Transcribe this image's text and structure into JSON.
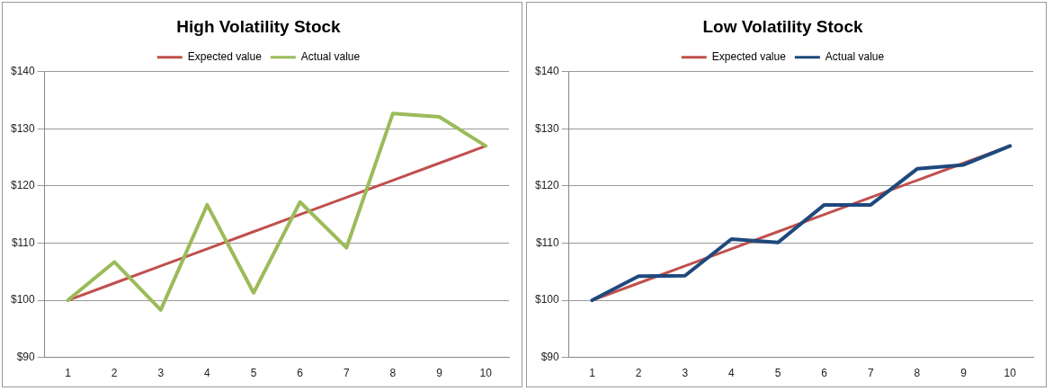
{
  "chart_data": [
    {
      "type": "line",
      "title": "High Volatility Stock",
      "categories": [
        "1",
        "2",
        "3",
        "4",
        "5",
        "6",
        "7",
        "8",
        "9",
        "10"
      ],
      "series": [
        {
          "name": "Expected value",
          "color": "#c0504d",
          "values": [
            100,
            103,
            106,
            109,
            112,
            115,
            118,
            121,
            124,
            127
          ]
        },
        {
          "name": "Actual value",
          "color": "#9bbb59",
          "values": [
            100,
            106.7,
            98.3,
            116.7,
            101.3,
            117.2,
            109.2,
            132.7,
            132.1,
            127
          ]
        }
      ],
      "ylim": [
        90,
        140
      ],
      "yticks": [
        {
          "value": 90,
          "label": "$90"
        },
        {
          "value": 100,
          "label": "$100"
        },
        {
          "value": 110,
          "label": "$110"
        },
        {
          "value": 120,
          "label": "$120"
        },
        {
          "value": 130,
          "label": "$130"
        },
        {
          "value": 140,
          "label": "$140"
        }
      ],
      "grid": "y",
      "legend": "top",
      "marker": "none",
      "line_style": "solid"
    },
    {
      "type": "line",
      "title": "Low Volatility Stock",
      "categories": [
        "1",
        "2",
        "3",
        "4",
        "5",
        "6",
        "7",
        "8",
        "9",
        "10"
      ],
      "series": [
        {
          "name": "Expected value",
          "color": "#c0504d",
          "values": [
            100,
            103,
            106,
            109,
            112,
            115,
            118,
            121,
            124,
            127
          ]
        },
        {
          "name": "Actual value",
          "color": "#1f497d",
          "values": [
            100,
            104.2,
            104.3,
            110.7,
            110.1,
            116.7,
            116.7,
            123,
            123.7,
            127
          ]
        }
      ],
      "ylim": [
        90,
        140
      ],
      "yticks": [
        {
          "value": 90,
          "label": "$90"
        },
        {
          "value": 100,
          "label": "$100"
        },
        {
          "value": 110,
          "label": "$110"
        },
        {
          "value": 120,
          "label": "$120"
        },
        {
          "value": 130,
          "label": "$130"
        },
        {
          "value": 140,
          "label": "$140"
        }
      ],
      "grid": "y",
      "legend": "top",
      "marker": "none",
      "line_style": "solid"
    }
  ]
}
